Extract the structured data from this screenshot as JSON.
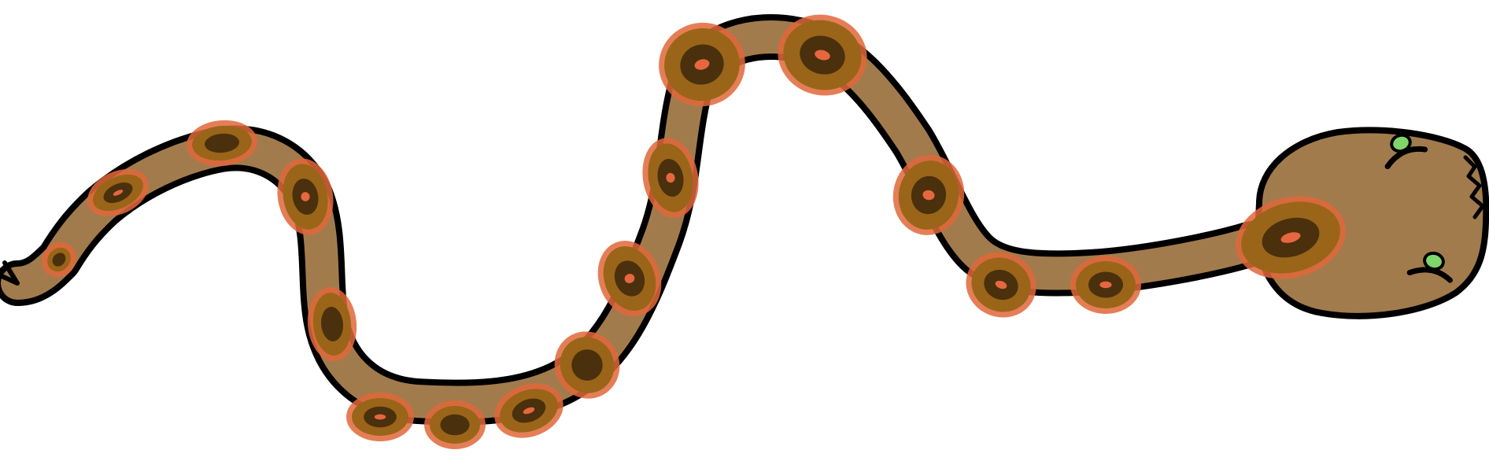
{
  "image": {
    "subject": "snake-illustration",
    "colors": {
      "background": "#ffffff",
      "outline": "#000000",
      "body": "#a27b4d",
      "spot_halo": "#e0673a",
      "spot_ring": "#9a6519",
      "spot_core": "#4a300c",
      "spot_center": "#e6673f",
      "eye": "#7fd66a"
    }
  }
}
